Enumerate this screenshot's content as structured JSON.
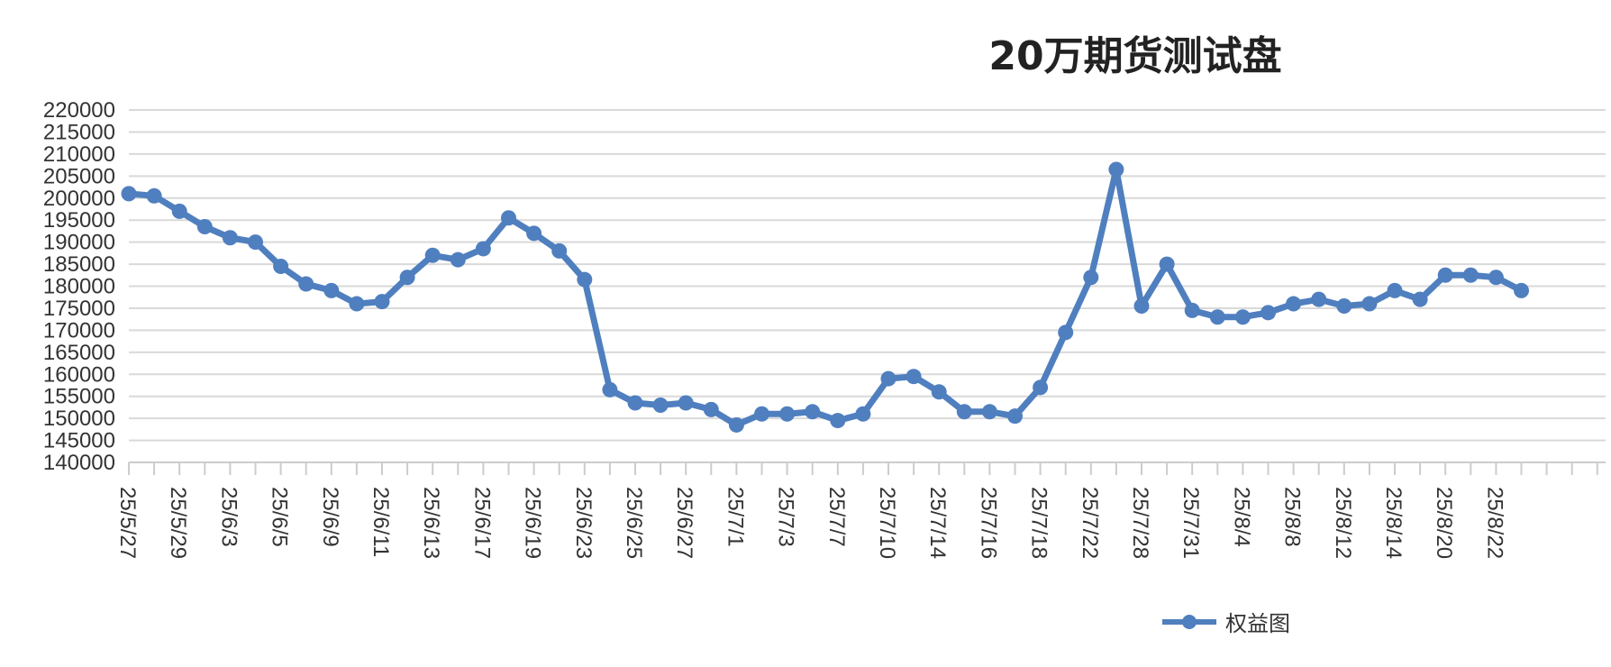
{
  "chart_data": {
    "type": "line",
    "title": "20万期货测试盘",
    "xlabel": "",
    "ylabel": "",
    "ylim": [
      140000,
      220000
    ],
    "yticks": [
      220000,
      215000,
      210000,
      205000,
      200000,
      195000,
      190000,
      185000,
      180000,
      175000,
      170000,
      165000,
      160000,
      155000,
      150000,
      145000,
      140000
    ],
    "x_labels": [
      "25/5/27",
      "25/5/29",
      "25/6/3",
      "25/6/5",
      "25/6/9",
      "25/6/11",
      "25/6/13",
      "25/6/17",
      "25/6/19",
      "25/6/23",
      "25/6/25",
      "25/6/27",
      "25/7/1",
      "25/7/3",
      "25/7/7",
      "25/7/10",
      "25/7/14",
      "25/7/16",
      "25/7/18",
      "25/7/22",
      "25/7/28",
      "25/7/31",
      "25/8/4",
      "25/8/8",
      "25/8/12",
      "25/8/14",
      "25/8/20",
      "25/8/22"
    ],
    "grid": true,
    "legend_position": "bottom-right",
    "color": "#4f7fbf",
    "series": [
      {
        "name": "权益图",
        "values": [
          201000,
          200500,
          197000,
          193500,
          191000,
          190000,
          184500,
          180500,
          179000,
          176000,
          176500,
          182000,
          187000,
          186000,
          188500,
          195500,
          192000,
          188000,
          181500,
          156500,
          153500,
          153000,
          153500,
          152000,
          148500,
          151000,
          151000,
          151500,
          149500,
          151000,
          159000,
          159500,
          156000,
          151500,
          151500,
          150500,
          157000,
          169500,
          182000,
          206500,
          175500,
          185000,
          174500,
          173000,
          173000,
          174000,
          176000,
          177000,
          175500,
          176000,
          179000,
          177000,
          182500,
          182500,
          182000,
          179000
        ]
      }
    ]
  }
}
